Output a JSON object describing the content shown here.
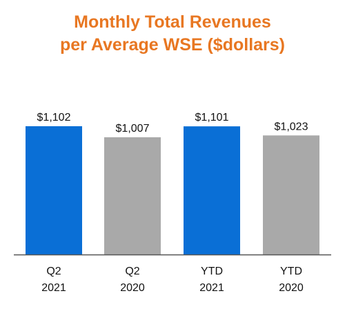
{
  "colors": {
    "title": "#E87722",
    "blue_bar": "#0A6FD6",
    "gray_bar": "#A9A9A9",
    "axis": "#555555",
    "text": "#111111"
  },
  "chart_data": {
    "type": "bar",
    "title_lines": [
      "Monthly Total Revenues",
      "per Average WSE ($dollars)"
    ],
    "categories": [
      [
        "Q2",
        "2021"
      ],
      [
        "Q2",
        "2020"
      ],
      [
        "YTD",
        "2021"
      ],
      [
        "YTD",
        "2020"
      ]
    ],
    "values": [
      1102,
      1007,
      1101,
      1023
    ],
    "value_labels": [
      "$1,102",
      "$1,007",
      "$1,101",
      "$1,023"
    ],
    "bar_colors": [
      "blue",
      "gray",
      "blue",
      "gray"
    ],
    "ylim": [
      0,
      1102
    ],
    "grid": false,
    "legend": "none"
  }
}
